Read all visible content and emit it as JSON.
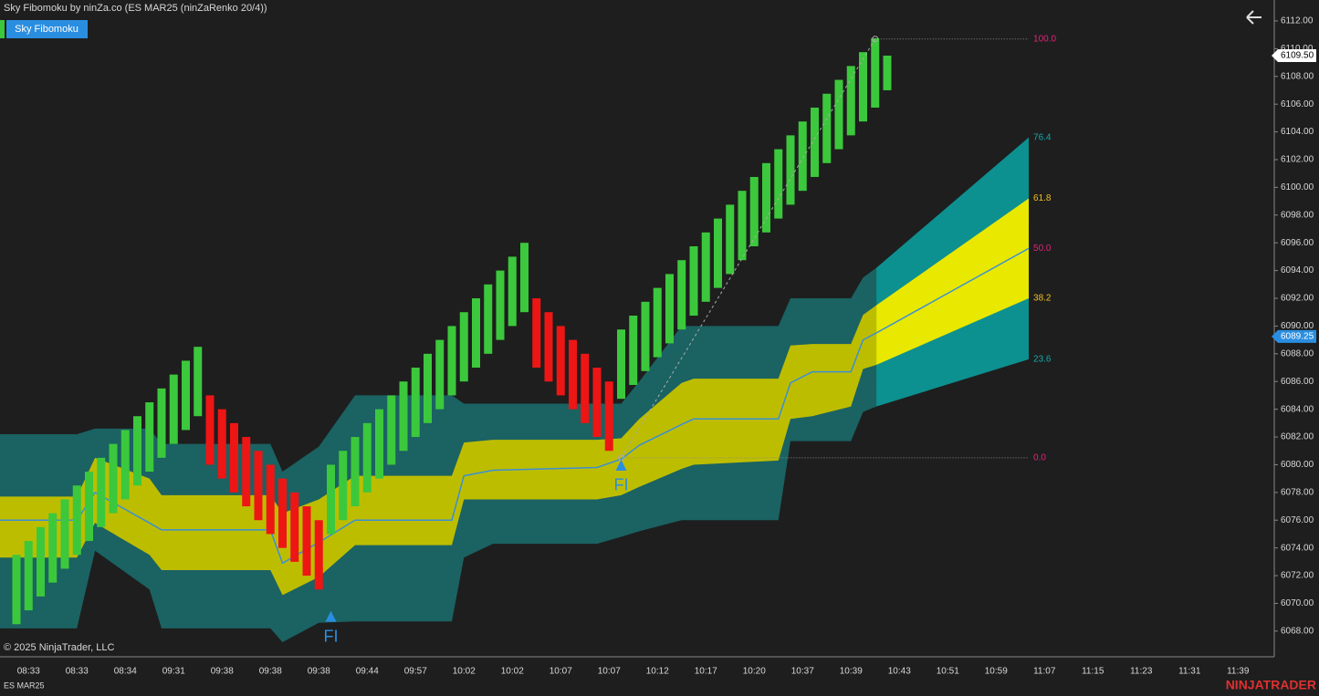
{
  "header": {
    "title": "Sky Fibomoku by ninZa.co (ES MAR25 (ninZaRenko 20/4))",
    "indicator_button": "Sky Fibomoku"
  },
  "chart_data": {
    "type": "candlestick",
    "open": [
      6068.5,
      6069.5,
      6070.5,
      6071.5,
      6072.5,
      6073.5,
      6074.5,
      6075.5,
      6076.5,
      6077.5,
      6078.5,
      6079.5,
      6080.5,
      6081.5,
      6082.5,
      6083.5,
      6085,
      6084,
      6083,
      6082,
      6081,
      6080,
      6079,
      6078,
      6077,
      6076,
      6075,
      6076,
      6077,
      6078,
      6079,
      6080,
      6081,
      6082,
      6083,
      6084,
      6085,
      6086,
      6087,
      6088,
      6089,
      6090,
      6091,
      6092,
      6091,
      6090,
      6089,
      6088,
      6087,
      6086,
      6084.75,
      6085.75,
      6086.75,
      6087.75,
      6088.75,
      6089.75,
      6090.75,
      6091.75,
      6092.75,
      6093.75,
      6094.75,
      6095.75,
      6096.75,
      6097.75,
      6098.75,
      6099.75,
      6100.75,
      6101.75,
      6102.75,
      6103.75,
      6104.75,
      6105.75,
      6107
    ],
    "close": [
      6073.5,
      6074.5,
      6075.5,
      6076.5,
      6077.5,
      6078.5,
      6079.5,
      6080.5,
      6081.5,
      6082.5,
      6083.5,
      6084.5,
      6085.5,
      6086.5,
      6087.5,
      6088.5,
      6080,
      6079,
      6078,
      6077,
      6076,
      6075,
      6074,
      6073,
      6072,
      6071,
      6080,
      6081,
      6082,
      6083,
      6084,
      6085,
      6086,
      6087,
      6088,
      6089,
      6090,
      6091,
      6092,
      6093,
      6094,
      6095,
      6096,
      6087,
      6086,
      6085,
      6084,
      6083,
      6082,
      6081,
      6089.75,
      6090.75,
      6091.75,
      6092.75,
      6093.75,
      6094.75,
      6095.75,
      6096.75,
      6097.75,
      6098.75,
      6099.75,
      6100.75,
      6101.75,
      6102.75,
      6103.75,
      6104.75,
      6105.75,
      6106.75,
      6107.75,
      6108.75,
      6109.75,
      6110.75,
      6109.5
    ],
    "up_color": "#3cc83c",
    "down_color": "#ee1515",
    "ylim": [
      6066.15,
      6113.51
    ],
    "yticks": [
      {
        "value": 6068,
        "label": "6068.00"
      },
      {
        "value": 6070,
        "label": "6070.00"
      },
      {
        "value": 6072,
        "label": "6072.00"
      },
      {
        "value": 6074,
        "label": "6074.00"
      },
      {
        "value": 6076,
        "label": "6076.00"
      },
      {
        "value": 6078,
        "label": "6078.00"
      },
      {
        "value": 6080,
        "label": "6080.00"
      },
      {
        "value": 6082,
        "label": "6082.00"
      },
      {
        "value": 6084,
        "label": "6084.00"
      },
      {
        "value": 6086,
        "label": "6086.00"
      },
      {
        "value": 6088,
        "label": "6088.00"
      },
      {
        "value": 6090,
        "label": "6090.00"
      },
      {
        "value": 6092,
        "label": "6092.00"
      },
      {
        "value": 6094,
        "label": "6094.00"
      },
      {
        "value": 6096,
        "label": "6096.00"
      },
      {
        "value": 6098,
        "label": "6098.00"
      },
      {
        "value": 6100,
        "label": "6100.00"
      },
      {
        "value": 6102,
        "label": "6102.00"
      },
      {
        "value": 6104,
        "label": "6104.00"
      },
      {
        "value": 6106,
        "label": "6106.00"
      },
      {
        "value": 6108,
        "label": "6108.00"
      },
      {
        "value": 6110,
        "label": "6110.00"
      },
      {
        "value": 6112,
        "label": "6112.00"
      }
    ],
    "x_tick_labels": [
      "08:33",
      "08:33",
      "08:34",
      "09:31",
      "09:38",
      "09:38",
      "09:38",
      "09:44",
      "09:57",
      "10:02",
      "10:02",
      "10:07",
      "10:07",
      "10:12",
      "10:17",
      "10:20",
      "10:37",
      "10:39",
      "10:43",
      "10:51",
      "10:59",
      "11:07",
      "11:15",
      "11:23",
      "11:31",
      "11:39"
    ],
    "bands": {
      "x": [
        -1.4,
        5,
        6.5,
        11,
        12,
        21,
        22,
        25,
        28,
        36,
        37,
        39.4,
        48,
        50,
        51.5,
        55,
        56,
        63,
        64,
        65.8,
        69,
        70,
        71.1
      ],
      "outer_upper": [
        6082.2,
        6082.2,
        6082.6,
        6082.6,
        6081.5,
        6081.5,
        6079.5,
        6081.3,
        6085,
        6085,
        6084.4,
        6084.4,
        6084.4,
        6084.4,
        6086,
        6090,
        6090,
        6090,
        6092,
        6092,
        6092,
        6093.5,
        6094.2
      ],
      "inner_upper": [
        6077.7,
        6077.7,
        6080.5,
        6079,
        6077.8,
        6077.8,
        6076.5,
        6077.5,
        6079.2,
        6079.2,
        6081.6,
        6081.8,
        6081.8,
        6081.9,
        6083.3,
        6085.9,
        6086.2,
        6086.2,
        6088.6,
        6088.7,
        6088.7,
        6090.8,
        6091.5
      ],
      "mid": [
        6076,
        6076,
        6078,
        6075.8,
        6075.3,
        6075.3,
        6072.9,
        6074.4,
        6076,
        6076,
        6079.2,
        6079.6,
        6079.8,
        6080.4,
        6081.4,
        6082.9,
        6083.3,
        6083.3,
        6085.9,
        6086.7,
        6086.7,
        6089,
        6089.5
      ],
      "inner_lower": [
        6073.3,
        6073.3,
        6075.8,
        6073.5,
        6072.4,
        6072.4,
        6070.6,
        6071.9,
        6074.2,
        6074.2,
        6077.5,
        6077.5,
        6077.5,
        6077.8,
        6078.4,
        6079.7,
        6080,
        6080.3,
        6083.3,
        6083.5,
        6084.2,
        6086.9,
        6087.2
      ],
      "outer_lower": [
        6068.2,
        6068.2,
        6073.8,
        6071,
        6068.2,
        6068.2,
        6067.2,
        6068.6,
        6068.7,
        6068.7,
        6073.3,
        6074.3,
        6074.3,
        6074.8,
        6075.2,
        6076,
        6076,
        6076,
        6081.7,
        6081.7,
        6081.7,
        6083.8,
        6084.2
      ],
      "outer_color": "#1b6262",
      "inner_color": "#bdbd00",
      "mid_color": "#3a8fd6"
    },
    "projection": {
      "x": [
        71.1,
        83.7
      ],
      "outer_upper": [
        6094.2,
        6103.6
      ],
      "inner_upper": [
        6091.5,
        6099.2
      ],
      "mid": [
        6089.5,
        6095.6
      ],
      "inner_lower": [
        6087.2,
        6092
      ],
      "outer_lower": [
        6084.2,
        6087.6
      ],
      "outer_color": "#0d9090",
      "inner_color": "#e8e800"
    },
    "fib_levels": [
      {
        "name": "100.0",
        "price": 6110.7,
        "color": "#e0237a",
        "line": true
      },
      {
        "name": "76.4",
        "price": 6103.6,
        "color": "#14a8a8",
        "line": false
      },
      {
        "name": "61.8",
        "price": 6099.2,
        "color": "#f0c020",
        "line": false
      },
      {
        "name": "50.0",
        "price": 6095.6,
        "color": "#e0237a",
        "line": false
      },
      {
        "name": "38.2",
        "price": 6092,
        "color": "#f0c020",
        "line": false
      },
      {
        "name": "23.6",
        "price": 6087.6,
        "color": "#14a8a8",
        "line": false
      },
      {
        "name": "0.0",
        "price": 6080.5,
        "color": "#e0237a",
        "line": true
      }
    ],
    "fib_anchor": {
      "bar_start": 50,
      "price_start": 6080.5,
      "bar_end": 71,
      "price_end": 6110.7
    },
    "signals": [
      {
        "bar": 26,
        "price": 6069,
        "label": "FI"
      },
      {
        "bar": 50,
        "price": 6079.9,
        "label": "FI"
      }
    ],
    "price_markers": [
      {
        "value": 6109.5,
        "label": "6109.50",
        "bg": "#ffffff",
        "fg": "#000000"
      },
      {
        "value": 6089.25,
        "label": "6089.25",
        "bg": "#2a8ee0",
        "fg": "#ffffff"
      }
    ]
  },
  "footer": {
    "copyright": "© 2025 NinjaTrader, LLC",
    "instrument": "ES MAR25",
    "brand": "NINJATRADER"
  }
}
